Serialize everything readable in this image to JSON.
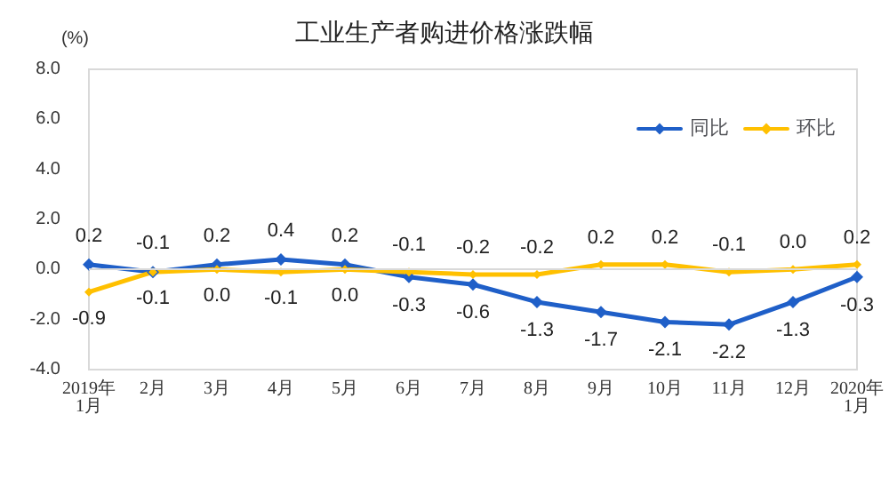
{
  "chart_data": {
    "type": "line",
    "title": "工业生产者购进价格涨跌幅",
    "ylabel": "(%)",
    "categories": [
      "2019年\n1月",
      "2月",
      "3月",
      "4月",
      "5月",
      "6月",
      "7月",
      "8月",
      "9月",
      "10月",
      "11月",
      "12月",
      "2020年\n1月"
    ],
    "series": [
      {
        "name": "同比",
        "color": "#1f5fc8",
        "values": [
          0.2,
          -0.1,
          0.2,
          0.4,
          0.2,
          -0.3,
          -0.6,
          -1.3,
          -1.7,
          -2.1,
          -2.2,
          -1.3,
          -0.3
        ],
        "value_labels": [
          "0.2",
          "-0.1",
          "0.2",
          "0.4",
          "0.2",
          "-0.3",
          "-0.6",
          "-1.3",
          "-1.7",
          "-2.1",
          "-2.2",
          "-1.3",
          "-0.3"
        ]
      },
      {
        "name": "环比",
        "color": "#ffc000",
        "values": [
          -0.9,
          -0.1,
          0.0,
          -0.1,
          0.0,
          -0.1,
          -0.2,
          -0.2,
          0.2,
          0.2,
          -0.1,
          0.0,
          0.2
        ],
        "value_labels": [
          "-0.9",
          "-0.1",
          "0.0",
          "-0.1",
          "0.0",
          "-0.1",
          "-0.2",
          "-0.2",
          "0.2",
          "0.2",
          "-0.1",
          "0.0",
          "0.2"
        ]
      }
    ],
    "ylim": [
      -4,
      8
    ],
    "yticks": [
      {
        "value": -4,
        "label": "-4.0"
      },
      {
        "value": -2,
        "label": "-2.0"
      },
      {
        "value": 0,
        "label": "0.0"
      },
      {
        "value": 2,
        "label": "2.0"
      },
      {
        "value": 4,
        "label": "4.0"
      },
      {
        "value": 6,
        "label": "6.0"
      },
      {
        "value": 8,
        "label": "8.0"
      }
    ],
    "ref_lines": [
      {
        "axis": "y",
        "value": 0,
        "color": "#d9d9d9"
      }
    ],
    "legend": "top right",
    "marker": "diamond",
    "line_style": "solid"
  }
}
